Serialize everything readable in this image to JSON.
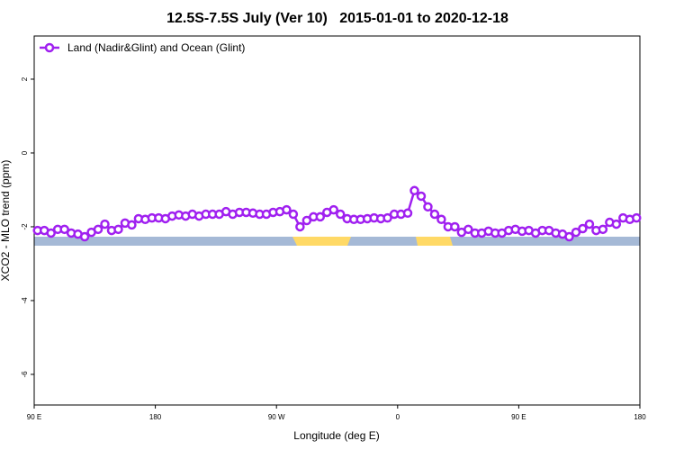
{
  "chart_data": {
    "type": "line",
    "title": "12.5S-7.5S July (Ver 10)   2015-01-01 to 2020-12-18",
    "x_label": "Longitude (deg E)",
    "y_label": "XCO2 - MLO trend (ppm)",
    "x": [
      92.5,
      97.5,
      102.5,
      107.5,
      112.5,
      117.5,
      122.5,
      127.5,
      132.5,
      137.5,
      142.5,
      147.5,
      152.5,
      157.5,
      162.5,
      167.5,
      172.5,
      177.5,
      182.5,
      187.5,
      192.5,
      197.5,
      202.5,
      207.5,
      212.5,
      217.5,
      222.5,
      227.5,
      232.5,
      237.5,
      242.5,
      247.5,
      252.5,
      257.5,
      262.5,
      267.5,
      272.5,
      277.5,
      282.5,
      287.5,
      292.5,
      297.5,
      302.5,
      307.5,
      312.5,
      317.5,
      322.5,
      327.5,
      332.5,
      337.5,
      342.5,
      347.5,
      352.5,
      357.5,
      362.5,
      367.5,
      372.5,
      377.5,
      382.5,
      387.5,
      392.5,
      397.5,
      402.5,
      407.5,
      412.5,
      417.5,
      422.5,
      427.5,
      432.5,
      437.5,
      442.5,
      447.5,
      452.5,
      457.5,
      462.5,
      467.5,
      472.5,
      477.5,
      482.5,
      487.5,
      492.5,
      497.5,
      502.5,
      507.5,
      512.5,
      517.5,
      522.5,
      527.5,
      532.5,
      537.5
    ],
    "series": [
      {
        "name": "Land (Nadir&Glint) and Ocean (Glint)",
        "color": "#a020f0",
        "values": [
          -2.1,
          -2.1,
          -2.17,
          -2.07,
          -2.07,
          -2.17,
          -2.2,
          -2.27,
          -2.15,
          -2.07,
          -1.93,
          -2.1,
          -2.07,
          -1.9,
          -1.95,
          -1.78,
          -1.8,
          -1.76,
          -1.76,
          -1.78,
          -1.71,
          -1.68,
          -1.71,
          -1.66,
          -1.71,
          -1.66,
          -1.66,
          -1.66,
          -1.59,
          -1.66,
          -1.61,
          -1.61,
          -1.63,
          -1.66,
          -1.66,
          -1.61,
          -1.59,
          -1.54,
          -1.66,
          -2.0,
          -1.83,
          -1.73,
          -1.73,
          -1.61,
          -1.54,
          -1.66,
          -1.78,
          -1.8,
          -1.8,
          -1.78,
          -1.76,
          -1.78,
          -1.76,
          -1.66,
          -1.66,
          -1.63,
          -1.02,
          -1.17,
          -1.46,
          -1.66,
          -1.8,
          -2.0,
          -2.0,
          -2.15,
          -2.07,
          -2.17,
          -2.17,
          -2.12,
          -2.17,
          -2.17,
          -2.1,
          -2.07,
          -2.12,
          -2.1,
          -2.17,
          -2.1,
          -2.1,
          -2.17,
          -2.2,
          -2.27,
          -2.15,
          -2.05,
          -1.93,
          -2.1,
          -2.07,
          -1.88,
          -1.93,
          -1.76,
          -1.8,
          -1.76
        ]
      }
    ],
    "xlim": [
      90,
      540
    ],
    "xticks": [
      {
        "value": 90,
        "label": "90 E"
      },
      180,
      {
        "value": 270,
        "label": "90 W"
      },
      {
        "value": 360,
        "label": "0"
      },
      {
        "value": 450,
        "label": "90 E"
      },
      {
        "value": 540,
        "label": "180"
      }
    ],
    "ylim": [
      -6.83,
      3.17
    ],
    "yticks": [
      -6,
      -4,
      -2,
      0,
      2
    ],
    "legend": "top-left"
  }
}
